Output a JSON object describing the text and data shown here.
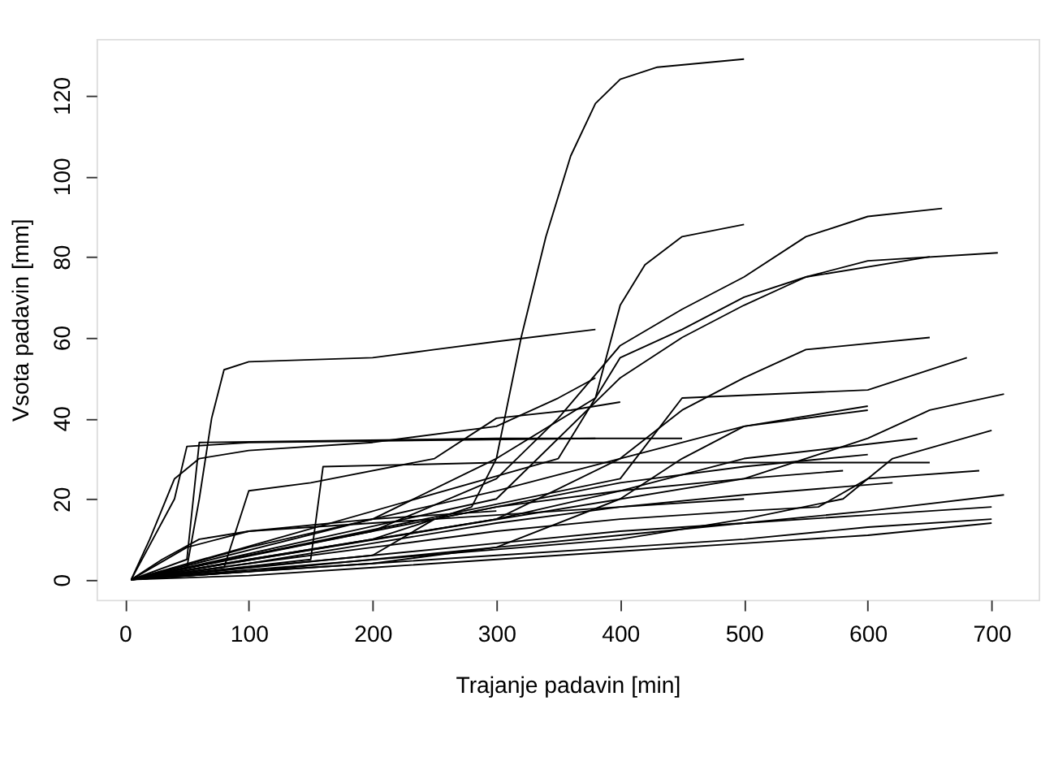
{
  "chart_data": {
    "type": "line",
    "xlabel": "Trajanje padavin [min]",
    "ylabel": "Vsota padavin [mm]",
    "xlim": [
      -23,
      738
    ],
    "ylim": [
      -5,
      134
    ],
    "xticks": [
      0,
      100,
      200,
      300,
      400,
      500,
      600,
      700
    ],
    "yticks": [
      0,
      20,
      40,
      60,
      80,
      100,
      120
    ],
    "grid": false,
    "legend": false,
    "marker": "none",
    "line_style": "solid",
    "series": [
      {
        "color": "#000000",
        "x": [
          5,
          100,
          200,
          280,
          300,
          320,
          340,
          360,
          380,
          400,
          430,
          500
        ],
        "values": [
          0,
          5,
          10,
          18,
          30,
          60,
          85,
          105,
          118,
          124,
          127,
          129
        ]
      },
      {
        "color": "#000000",
        "x": [
          5,
          50,
          60,
          70,
          80,
          100,
          200,
          250,
          300,
          380
        ],
        "values": [
          0,
          3,
          20,
          40,
          52,
          54,
          55,
          57,
          59,
          62
        ]
      },
      {
        "color": "#000000",
        "x": [
          5,
          200,
          300,
          380,
          400,
          420,
          450,
          500
        ],
        "values": [
          0,
          15,
          30,
          45,
          68,
          78,
          85,
          88
        ]
      },
      {
        "color": "#000000",
        "x": [
          5,
          200,
          300,
          350,
          400,
          450,
          500,
          550,
          600,
          660
        ],
        "values": [
          0,
          12,
          25,
          40,
          58,
          67,
          75,
          85,
          90,
          92
        ]
      },
      {
        "color": "#000000",
        "x": [
          5,
          300,
          400,
          450,
          500,
          550,
          600,
          705
        ],
        "values": [
          0,
          20,
          50,
          60,
          68,
          75,
          79,
          81
        ]
      },
      {
        "color": "#000000",
        "x": [
          5,
          350,
          400,
          450,
          500,
          550,
          650
        ],
        "values": [
          0,
          30,
          55,
          62,
          70,
          75,
          80
        ]
      },
      {
        "color": "#000000",
        "x": [
          5,
          300,
          400,
          450,
          500,
          550,
          650
        ],
        "values": [
          0,
          15,
          30,
          42,
          50,
          57,
          60
        ]
      },
      {
        "color": "#000000",
        "x": [
          5,
          400,
          450,
          600,
          680
        ],
        "values": [
          0,
          25,
          45,
          47,
          55
        ]
      },
      {
        "color": "#000000",
        "x": [
          5,
          500,
          600,
          650,
          710
        ],
        "values": [
          0,
          25,
          35,
          42,
          46
        ]
      },
      {
        "color": "#000000",
        "x": [
          5,
          400,
          500,
          580,
          620,
          700
        ],
        "values": [
          0,
          10,
          15,
          20,
          30,
          37
        ]
      },
      {
        "color": "#000000",
        "x": [
          5,
          40,
          50,
          100,
          380
        ],
        "values": [
          0,
          20,
          33,
          34,
          35
        ]
      },
      {
        "color": "#000000",
        "x": [
          5,
          20,
          40,
          60,
          100,
          200,
          300,
          350,
          380
        ],
        "values": [
          0,
          10,
          25,
          30,
          32,
          34,
          38,
          45,
          50
        ]
      },
      {
        "color": "#000000",
        "x": [
          5,
          50,
          60,
          300,
          450
        ],
        "values": [
          0,
          5,
          34,
          35,
          35
        ]
      },
      {
        "color": "#000000",
        "x": [
          5,
          80,
          100,
          150,
          250,
          300,
          360,
          400
        ],
        "values": [
          0,
          3,
          22,
          24,
          30,
          40,
          42,
          44
        ]
      },
      {
        "color": "#000000",
        "x": [
          5,
          150,
          160,
          300,
          650
        ],
        "values": [
          0,
          5,
          28,
          29,
          29
        ]
      },
      {
        "color": "#000000",
        "x": [
          5,
          100,
          200,
          300,
          400,
          500,
          600
        ],
        "values": [
          0,
          8,
          15,
          22,
          30,
          38,
          43
        ]
      },
      {
        "color": "#000000",
        "x": [
          5,
          100,
          200,
          300,
          400,
          500,
          640
        ],
        "values": [
          0,
          5,
          10,
          15,
          22,
          30,
          35
        ]
      },
      {
        "color": "#000000",
        "x": [
          5,
          100,
          200,
          300,
          400,
          500,
          600,
          700
        ],
        "values": [
          0,
          3,
          6,
          9,
          12,
          14,
          16,
          18
        ]
      },
      {
        "color": "#000000",
        "x": [
          5,
          100,
          200,
          300,
          400,
          500,
          600,
          700
        ],
        "values": [
          0,
          2,
          4,
          6,
          8,
          10,
          13,
          15
        ]
      },
      {
        "color": "#000000",
        "x": [
          5,
          100,
          200,
          300,
          400,
          500,
          560,
          600,
          690
        ],
        "values": [
          0,
          4,
          8,
          12,
          15,
          17,
          18,
          25,
          27
        ]
      },
      {
        "color": "#000000",
        "x": [
          5,
          100,
          200,
          300,
          400,
          500,
          600
        ],
        "values": [
          0,
          6,
          12,
          18,
          24,
          28,
          31
        ]
      },
      {
        "color": "#000000",
        "x": [
          5,
          100,
          200,
          300,
          400,
          500,
          600,
          710
        ],
        "values": [
          0,
          2,
          5,
          8,
          11,
          14,
          17,
          21
        ]
      },
      {
        "color": "#000000",
        "x": [
          5,
          100,
          200,
          300,
          400,
          500,
          620
        ],
        "values": [
          0,
          4,
          9,
          14,
          18,
          21,
          24
        ]
      },
      {
        "color": "#000000",
        "x": [
          5,
          50,
          100,
          200,
          300,
          400,
          500
        ],
        "values": [
          0,
          8,
          12,
          14,
          16,
          18,
          20
        ]
      },
      {
        "color": "#000000",
        "x": [
          5,
          200,
          300,
          400,
          450,
          500,
          600
        ],
        "values": [
          0,
          4,
          8,
          20,
          30,
          38,
          42
        ]
      },
      {
        "color": "#000000",
        "x": [
          5,
          100,
          200,
          300,
          400,
          500,
          600,
          700
        ],
        "values": [
          0,
          1,
          3,
          5,
          7,
          9,
          11,
          14
        ]
      },
      {
        "color": "#000000",
        "x": [
          5,
          30,
          60,
          100,
          200,
          300
        ],
        "values": [
          0,
          5,
          10,
          12,
          15,
          17
        ]
      },
      {
        "color": "#000000",
        "x": [
          5,
          200,
          250,
          300,
          400,
          500,
          580
        ],
        "values": [
          0,
          6,
          15,
          18,
          22,
          25,
          27
        ]
      }
    ]
  }
}
